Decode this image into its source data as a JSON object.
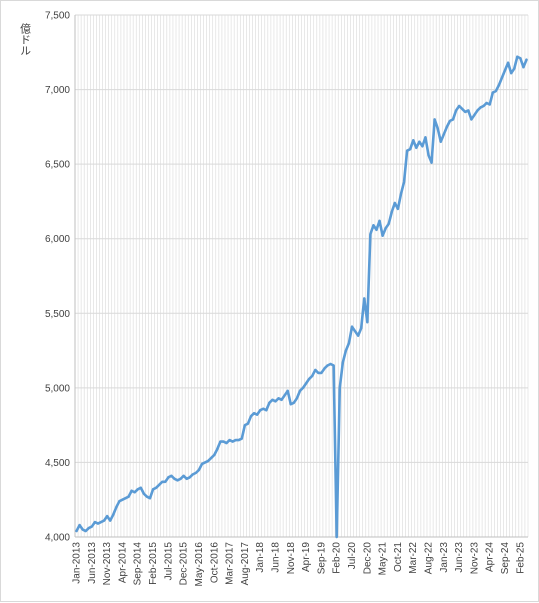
{
  "chart_data": {
    "type": "line",
    "ylabel": "億ドル",
    "ylim": [
      4000,
      7500
    ],
    "yticks": [
      4000,
      4500,
      5000,
      5500,
      6000,
      6500,
      7000,
      7500
    ],
    "ytick_labels": [
      "4,000",
      "4,500",
      "5,000",
      "5,500",
      "6,000",
      "6,500",
      "7,000",
      "7,500"
    ],
    "xtick_labels": [
      "Jan-2013",
      "Jun-2013",
      "Nov-2013",
      "Apr-2014",
      "Sep-2014",
      "Feb-2015",
      "Jul-2015",
      "Dec-2015",
      "May-2016",
      "Oct-2016",
      "Mar-2017",
      "Aug-2017",
      "Jan-18",
      "Jun-18",
      "Nov-18",
      "Apr-19",
      "Sep-19",
      "Feb-20",
      "Jul-20",
      "Dec-20",
      "May-21",
      "Oct-21",
      "Mar-22",
      "Aug-22",
      "Jan-23",
      "Jun-23",
      "Nov-23",
      "Apr-24",
      "Sep-24",
      "Feb-25"
    ],
    "grid": true,
    "line_color": "#5b9bd5",
    "series": [
      {
        "x_start": "Jan-2013",
        "frequency": "monthly",
        "values": [
          4040,
          4080,
          4050,
          4040,
          4060,
          4070,
          4100,
          4090,
          4100,
          4110,
          4140,
          4110,
          4150,
          4200,
          4240,
          4250,
          4260,
          4270,
          4310,
          4300,
          4320,
          4330,
          4290,
          4270,
          4260,
          4320,
          4330,
          4350,
          4370,
          4370,
          4400,
          4410,
          4390,
          4380,
          4390,
          4410,
          4390,
          4400,
          4420,
          4430,
          4450,
          4490,
          4500,
          4510,
          4530,
          4550,
          4590,
          4640,
          4640,
          4630,
          4650,
          4640,
          4650,
          4650,
          4660,
          4750,
          4760,
          4810,
          4830,
          4820,
          4850,
          4860,
          4850,
          4900,
          4920,
          4910,
          4930,
          4920,
          4950,
          4980,
          4890,
          4900,
          4930,
          4980,
          5000,
          5030,
          5060,
          5080,
          5120,
          5100,
          5100,
          5130,
          5150,
          5160,
          5150,
          4000,
          5000,
          5170,
          5250,
          5300,
          5410,
          5380,
          5350,
          5400,
          5600,
          5440,
          6030,
          6090,
          6060,
          6120,
          6020,
          6070,
          6100,
          6180,
          6240,
          6200,
          6300,
          6380,
          6590,
          6600,
          6660,
          6610,
          6650,
          6620,
          6680,
          6560,
          6510,
          6800,
          6740,
          6650,
          6700,
          6750,
          6790,
          6800,
          6860,
          6890,
          6870,
          6850,
          6860,
          6800,
          6830,
          6860,
          6880,
          6890,
          6910,
          6900,
          6980,
          6990,
          7030,
          7080,
          7130,
          7180,
          7110,
          7140,
          7220,
          7210,
          7150,
          7200
        ]
      }
    ]
  }
}
